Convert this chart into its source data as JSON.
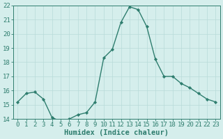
{
  "x": [
    0,
    1,
    2,
    3,
    4,
    5,
    6,
    7,
    8,
    9,
    10,
    11,
    12,
    13,
    14,
    15,
    16,
    17,
    18,
    19,
    20,
    21,
    22,
    23
  ],
  "y": [
    15.2,
    15.8,
    15.9,
    15.4,
    14.1,
    13.85,
    14.0,
    14.3,
    14.45,
    15.2,
    18.3,
    18.9,
    20.8,
    21.9,
    21.7,
    20.5,
    18.2,
    17.0,
    17.0,
    16.5,
    16.2,
    15.8,
    15.4,
    15.2
  ],
  "xlabel": "Humidex (Indice chaleur)",
  "ylim": [
    14,
    22
  ],
  "xlim": [
    -0.5,
    23.5
  ],
  "yticks": [
    14,
    15,
    16,
    17,
    18,
    19,
    20,
    21,
    22
  ],
  "xticks": [
    0,
    1,
    2,
    3,
    4,
    5,
    6,
    7,
    8,
    9,
    10,
    11,
    12,
    13,
    14,
    15,
    16,
    17,
    18,
    19,
    20,
    21,
    22,
    23
  ],
  "line_color": "#2e7d6e",
  "marker_color": "#2e7d6e",
  "bg_color": "#d5eeec",
  "grid_color": "#b8dbd8",
  "tick_color": "#2e7d6e",
  "label_color": "#2e7d6e",
  "font_size": 6.5,
  "xlabel_fontsize": 7.5
}
